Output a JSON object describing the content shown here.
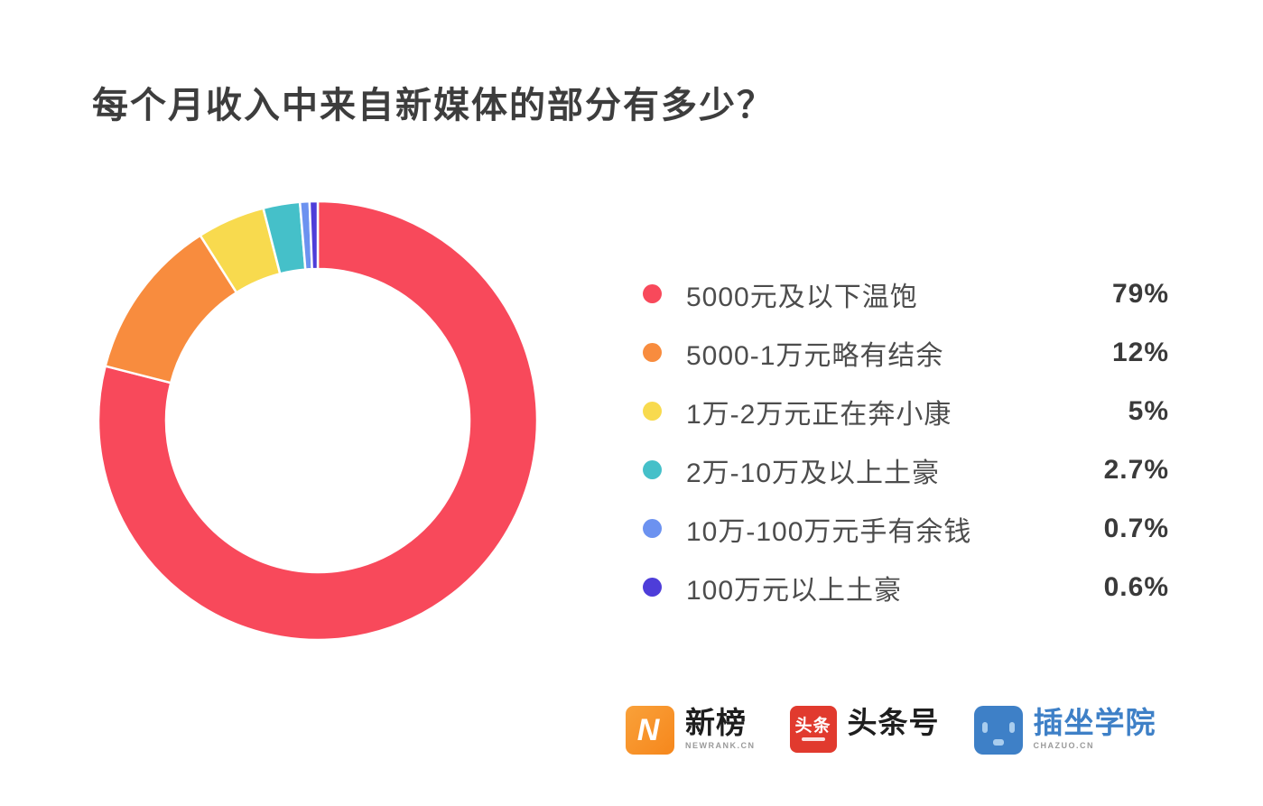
{
  "header": {
    "title": "每个月收入中来自新媒体的部分有多少？"
  },
  "chart_data": {
    "type": "pie",
    "subtype": "donut",
    "title": "每个月收入中来自新媒体的部分有多少？",
    "categories": [
      "5000元及以下温饱",
      "5000-1万元略有结余",
      "1万-2万元正在奔小康",
      "2万-10万及以上土豪",
      "10万-100万元手有余钱",
      "100万元以上土豪"
    ],
    "values": [
      79,
      12,
      5,
      2.7,
      0.7,
      0.6
    ],
    "value_labels": [
      "79%",
      "12%",
      "5%",
      "2.7%",
      "0.7%",
      "0.6%"
    ],
    "colors": [
      "#f8495b",
      "#f88c3e",
      "#f8da4e",
      "#45c0c9",
      "#6c92f0",
      "#4e3dd9"
    ],
    "start_angle_deg": 0,
    "direction": "clockwise",
    "hole_ratio": 0.69,
    "slice_gap_color": "#ffffff",
    "legend_position": "right"
  },
  "footer": {
    "newrank": {
      "icon_letter": "N",
      "name": "新榜",
      "subtext": "NEWRANK.CN"
    },
    "toutiao": {
      "icon_text": "头条",
      "name": "头条号"
    },
    "chazuo": {
      "name": "插坐学院",
      "subtext": "CHAZUO.CN"
    }
  }
}
